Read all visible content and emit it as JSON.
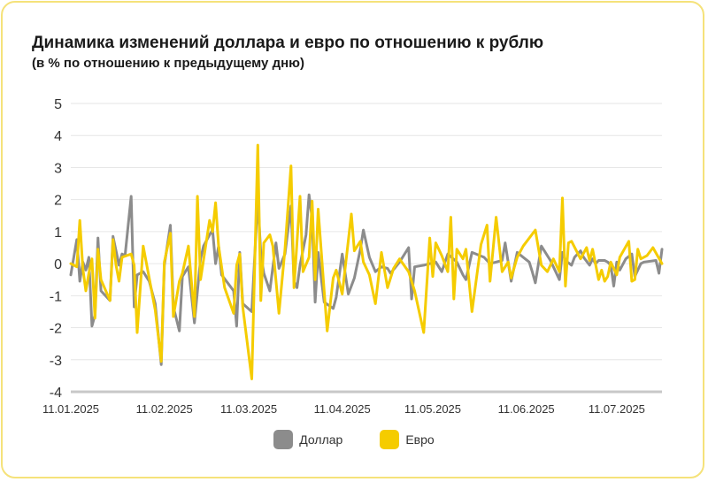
{
  "title": "Динамика изменений доллара и евро по отношению к рублю",
  "subtitle": "(в % по отношению к предыдущему дню)",
  "colors": {
    "dollar": "#8c8c8c",
    "euro": "#f5cc00",
    "grid": "#e6e6e6",
    "axis": "#c8c8c8",
    "border": "#f5e27a"
  },
  "chart_data": {
    "type": "line",
    "ylim": [
      -4,
      5
    ],
    "yticks": [
      "5",
      "4",
      "3",
      "2",
      "1",
      "0",
      "-1",
      "-2",
      "-3",
      "-4"
    ],
    "xticks": [
      "11.01.2025",
      "11.02.2025",
      "11.03.2025",
      "11.04.2025",
      "11.05.2025",
      "11.06.2025",
      "11.07.2025"
    ],
    "xrange": [
      "2025-01-11",
      "2025-07-26"
    ],
    "grid": true,
    "legend_position": "bottom",
    "series": [
      {
        "name": "Доллар",
        "color": "#8c8c8c",
        "points": [
          [
            "2025-01-11",
            -0.35
          ],
          [
            "2025-01-13",
            0.75
          ],
          [
            "2025-01-14",
            -0.55
          ],
          [
            "2025-01-15",
            0.05
          ],
          [
            "2025-01-16",
            -0.2
          ],
          [
            "2025-01-17",
            0.2
          ],
          [
            "2025-01-18",
            -1.95
          ],
          [
            "2025-01-19",
            -1.6
          ],
          [
            "2025-01-20",
            0.8
          ],
          [
            "2025-01-21",
            -0.85
          ],
          [
            "2025-01-24",
            -1.15
          ],
          [
            "2025-01-25",
            0.85
          ],
          [
            "2025-01-27",
            -0.05
          ],
          [
            "2025-01-28",
            0.3
          ],
          [
            "2025-01-29",
            0.25
          ],
          [
            "2025-01-31",
            2.1
          ],
          [
            "2025-02-01",
            -1.35
          ],
          [
            "2025-02-02",
            -0.35
          ],
          [
            "2025-02-04",
            -0.25
          ],
          [
            "2025-02-06",
            -0.55
          ],
          [
            "2025-02-08",
            -1.25
          ],
          [
            "2025-02-10",
            -3.15
          ],
          [
            "2025-02-11",
            -0.05
          ],
          [
            "2025-02-13",
            1.2
          ],
          [
            "2025-02-14",
            -1.35
          ],
          [
            "2025-02-16",
            -2.1
          ],
          [
            "2025-02-17",
            -0.4
          ],
          [
            "2025-02-19",
            -0.1
          ],
          [
            "2025-02-21",
            -1.85
          ],
          [
            "2025-02-23",
            0.15
          ],
          [
            "2025-02-24",
            0.55
          ],
          [
            "2025-02-26",
            0.9
          ],
          [
            "2025-02-27",
            1.05
          ],
          [
            "2025-02-28",
            0.0
          ],
          [
            "2025-03-01",
            0.55
          ],
          [
            "2025-03-02",
            -0.35
          ],
          [
            "2025-03-04",
            -0.6
          ],
          [
            "2025-03-06",
            -0.85
          ],
          [
            "2025-03-07",
            -1.95
          ],
          [
            "2025-03-08",
            0.35
          ],
          [
            "2025-03-09",
            -1.25
          ],
          [
            "2025-03-12",
            -1.5
          ],
          [
            "2025-03-14",
            2.05
          ],
          [
            "2025-03-15",
            0.3
          ],
          [
            "2025-03-16",
            -0.3
          ],
          [
            "2025-03-18",
            -0.85
          ],
          [
            "2025-03-20",
            0.65
          ],
          [
            "2025-03-21",
            -0.15
          ],
          [
            "2025-03-23",
            0.3
          ],
          [
            "2025-03-25",
            1.8
          ],
          [
            "2025-03-26",
            -0.55
          ],
          [
            "2025-03-27",
            -0.75
          ],
          [
            "2025-03-28",
            -0.05
          ],
          [
            "2025-03-30",
            0.9
          ],
          [
            "2025-03-31",
            2.15
          ],
          [
            "2025-04-01",
            1.4
          ],
          [
            "2025-04-02",
            -1.2
          ],
          [
            "2025-04-03",
            0.35
          ],
          [
            "2025-04-05",
            -1.2
          ],
          [
            "2025-04-08",
            -1.4
          ],
          [
            "2025-04-09",
            -1.05
          ],
          [
            "2025-04-11",
            0.3
          ],
          [
            "2025-04-13",
            -0.95
          ],
          [
            "2025-04-15",
            -0.45
          ],
          [
            "2025-04-17",
            0.45
          ],
          [
            "2025-04-18",
            1.05
          ],
          [
            "2025-04-20",
            0.2
          ],
          [
            "2025-04-22",
            -0.25
          ],
          [
            "2025-04-24",
            -0.1
          ],
          [
            "2025-04-26",
            -0.15
          ],
          [
            "2025-04-27",
            -0.3
          ],
          [
            "2025-04-30",
            0.05
          ],
          [
            "2025-05-03",
            0.5
          ],
          [
            "2025-05-04",
            -1.1
          ],
          [
            "2025-05-05",
            -0.1
          ],
          [
            "2025-05-08",
            -0.05
          ],
          [
            "2025-05-12",
            0.05
          ],
          [
            "2025-05-14",
            -0.25
          ],
          [
            "2025-05-16",
            0.3
          ],
          [
            "2025-05-19",
            0.05
          ],
          [
            "2025-05-21",
            -0.35
          ],
          [
            "2025-05-22",
            -0.5
          ],
          [
            "2025-05-24",
            0.35
          ],
          [
            "2025-05-28",
            0.2
          ],
          [
            "2025-05-30",
            0.0
          ],
          [
            "2025-06-01",
            0.05
          ],
          [
            "2025-06-03",
            0.1
          ],
          [
            "2025-06-04",
            0.65
          ],
          [
            "2025-06-06",
            -0.55
          ],
          [
            "2025-06-08",
            0.35
          ],
          [
            "2025-06-10",
            0.2
          ],
          [
            "2025-06-12",
            0.05
          ],
          [
            "2025-06-13",
            -0.25
          ],
          [
            "2025-06-14",
            -0.6
          ],
          [
            "2025-06-16",
            0.55
          ],
          [
            "2025-06-19",
            0.1
          ],
          [
            "2025-06-22",
            -0.5
          ],
          [
            "2025-06-23",
            0.35
          ],
          [
            "2025-06-24",
            0.1
          ],
          [
            "2025-06-26",
            -0.05
          ],
          [
            "2025-06-27",
            0.2
          ],
          [
            "2025-06-29",
            0.4
          ],
          [
            "2025-06-30",
            0.2
          ],
          [
            "2025-07-02",
            -0.05
          ],
          [
            "2025-07-03",
            0.15
          ],
          [
            "2025-07-04",
            0.0
          ],
          [
            "2025-07-05",
            0.1
          ],
          [
            "2025-07-07",
            0.1
          ],
          [
            "2025-07-08",
            0.05
          ],
          [
            "2025-07-09",
            -0.05
          ],
          [
            "2025-07-10",
            -0.7
          ],
          [
            "2025-07-11",
            0.05
          ],
          [
            "2025-07-12",
            -0.2
          ],
          [
            "2025-07-14",
            0.15
          ],
          [
            "2025-07-16",
            0.3
          ],
          [
            "2025-07-17",
            -0.4
          ],
          [
            "2025-07-19",
            0.0
          ],
          [
            "2025-07-20",
            0.05
          ],
          [
            "2025-07-24",
            0.1
          ],
          [
            "2025-07-25",
            -0.3
          ],
          [
            "2025-07-26",
            0.45
          ]
        ]
      },
      {
        "name": "Евро",
        "color": "#f5cc00",
        "points": [
          [
            "2025-01-11",
            0.0
          ],
          [
            "2025-01-13",
            -0.1
          ],
          [
            "2025-01-14",
            1.35
          ],
          [
            "2025-01-15",
            -0.15
          ],
          [
            "2025-01-16",
            -0.85
          ],
          [
            "2025-01-17",
            -0.3
          ],
          [
            "2025-01-18",
            0.15
          ],
          [
            "2025-01-19",
            -1.7
          ],
          [
            "2025-01-20",
            0.45
          ],
          [
            "2025-01-21",
            -0.5
          ],
          [
            "2025-01-24",
            -1.15
          ],
          [
            "2025-01-25",
            0.75
          ],
          [
            "2025-01-26",
            -0.05
          ],
          [
            "2025-01-27",
            -0.55
          ],
          [
            "2025-01-28",
            0.2
          ],
          [
            "2025-01-31",
            0.3
          ],
          [
            "2025-02-01",
            -0.05
          ],
          [
            "2025-02-02",
            -2.15
          ],
          [
            "2025-02-04",
            0.55
          ],
          [
            "2025-02-06",
            -0.45
          ],
          [
            "2025-02-08",
            -1.45
          ],
          [
            "2025-02-10",
            -3.05
          ],
          [
            "2025-02-11",
            0.05
          ],
          [
            "2025-02-13",
            0.95
          ],
          [
            "2025-02-14",
            -1.65
          ],
          [
            "2025-02-16",
            -0.55
          ],
          [
            "2025-02-17",
            -0.3
          ],
          [
            "2025-02-19",
            0.55
          ],
          [
            "2025-02-21",
            -1.65
          ],
          [
            "2025-02-22",
            2.1
          ],
          [
            "2025-02-23",
            -0.5
          ],
          [
            "2025-02-26",
            1.35
          ],
          [
            "2025-02-27",
            1.0
          ],
          [
            "2025-02-28",
            1.9
          ],
          [
            "2025-03-01",
            0.55
          ],
          [
            "2025-03-03",
            -0.75
          ],
          [
            "2025-03-06",
            -1.55
          ],
          [
            "2025-03-07",
            -0.05
          ],
          [
            "2025-03-08",
            0.3
          ],
          [
            "2025-03-09",
            -1.35
          ],
          [
            "2025-03-12",
            -3.6
          ],
          [
            "2025-03-14",
            3.7
          ],
          [
            "2025-03-15",
            -1.15
          ],
          [
            "2025-03-16",
            0.65
          ],
          [
            "2025-03-18",
            0.9
          ],
          [
            "2025-03-19",
            0.55
          ],
          [
            "2025-03-21",
            -1.55
          ],
          [
            "2025-03-23",
            0.45
          ],
          [
            "2025-03-25",
            3.05
          ],
          [
            "2025-03-26",
            -0.75
          ],
          [
            "2025-03-28",
            2.1
          ],
          [
            "2025-03-29",
            -0.25
          ],
          [
            "2025-03-31",
            0.2
          ],
          [
            "2025-04-01",
            1.95
          ],
          [
            "2025-04-02",
            -0.5
          ],
          [
            "2025-04-03",
            1.7
          ],
          [
            "2025-04-05",
            -0.85
          ],
          [
            "2025-04-06",
            -2.1
          ],
          [
            "2025-04-08",
            -0.45
          ],
          [
            "2025-04-09",
            -0.2
          ],
          [
            "2025-04-11",
            -0.95
          ],
          [
            "2025-04-14",
            1.55
          ],
          [
            "2025-04-15",
            0.4
          ],
          [
            "2025-04-17",
            0.7
          ],
          [
            "2025-04-18",
            0.05
          ],
          [
            "2025-04-20",
            -0.35
          ],
          [
            "2025-04-22",
            -1.25
          ],
          [
            "2025-04-24",
            0.35
          ],
          [
            "2025-04-26",
            -0.75
          ],
          [
            "2025-04-28",
            -0.15
          ],
          [
            "2025-04-30",
            0.15
          ],
          [
            "2025-05-03",
            -0.25
          ],
          [
            "2025-05-05",
            -0.85
          ],
          [
            "2025-05-08",
            -2.15
          ],
          [
            "2025-05-10",
            0.8
          ],
          [
            "2025-05-11",
            -0.4
          ],
          [
            "2025-05-12",
            0.65
          ],
          [
            "2025-05-14",
            0.25
          ],
          [
            "2025-05-16",
            -0.25
          ],
          [
            "2025-05-17",
            1.45
          ],
          [
            "2025-05-18",
            -1.1
          ],
          [
            "2025-05-19",
            0.45
          ],
          [
            "2025-05-21",
            0.15
          ],
          [
            "2025-05-22",
            0.45
          ],
          [
            "2025-05-24",
            -1.5
          ],
          [
            "2025-05-27",
            0.6
          ],
          [
            "2025-05-29",
            1.2
          ],
          [
            "2025-05-30",
            -0.55
          ],
          [
            "2025-06-01",
            1.45
          ],
          [
            "2025-06-03",
            -0.25
          ],
          [
            "2025-06-05",
            0.05
          ],
          [
            "2025-06-06",
            -0.45
          ],
          [
            "2025-06-08",
            0.2
          ],
          [
            "2025-06-10",
            0.55
          ],
          [
            "2025-06-14",
            1.05
          ],
          [
            "2025-06-16",
            -0.05
          ],
          [
            "2025-06-18",
            -0.25
          ],
          [
            "2025-06-20",
            0.15
          ],
          [
            "2025-06-22",
            -0.25
          ],
          [
            "2025-06-23",
            2.05
          ],
          [
            "2025-06-24",
            -0.7
          ],
          [
            "2025-06-25",
            0.65
          ],
          [
            "2025-06-26",
            0.7
          ],
          [
            "2025-06-29",
            0.15
          ],
          [
            "2025-07-01",
            0.5
          ],
          [
            "2025-07-02",
            0.1
          ],
          [
            "2025-07-03",
            0.45
          ],
          [
            "2025-07-05",
            -0.5
          ],
          [
            "2025-07-06",
            -0.2
          ],
          [
            "2025-07-07",
            -0.55
          ],
          [
            "2025-07-08",
            -0.4
          ],
          [
            "2025-07-09",
            0.05
          ],
          [
            "2025-07-11",
            -0.35
          ],
          [
            "2025-07-12",
            0.2
          ],
          [
            "2025-07-15",
            0.7
          ],
          [
            "2025-07-16",
            -0.55
          ],
          [
            "2025-07-17",
            -0.5
          ],
          [
            "2025-07-18",
            0.45
          ],
          [
            "2025-07-19",
            0.15
          ],
          [
            "2025-07-21",
            0.25
          ],
          [
            "2025-07-23",
            0.5
          ],
          [
            "2025-07-26",
            0.0
          ]
        ]
      }
    ]
  }
}
